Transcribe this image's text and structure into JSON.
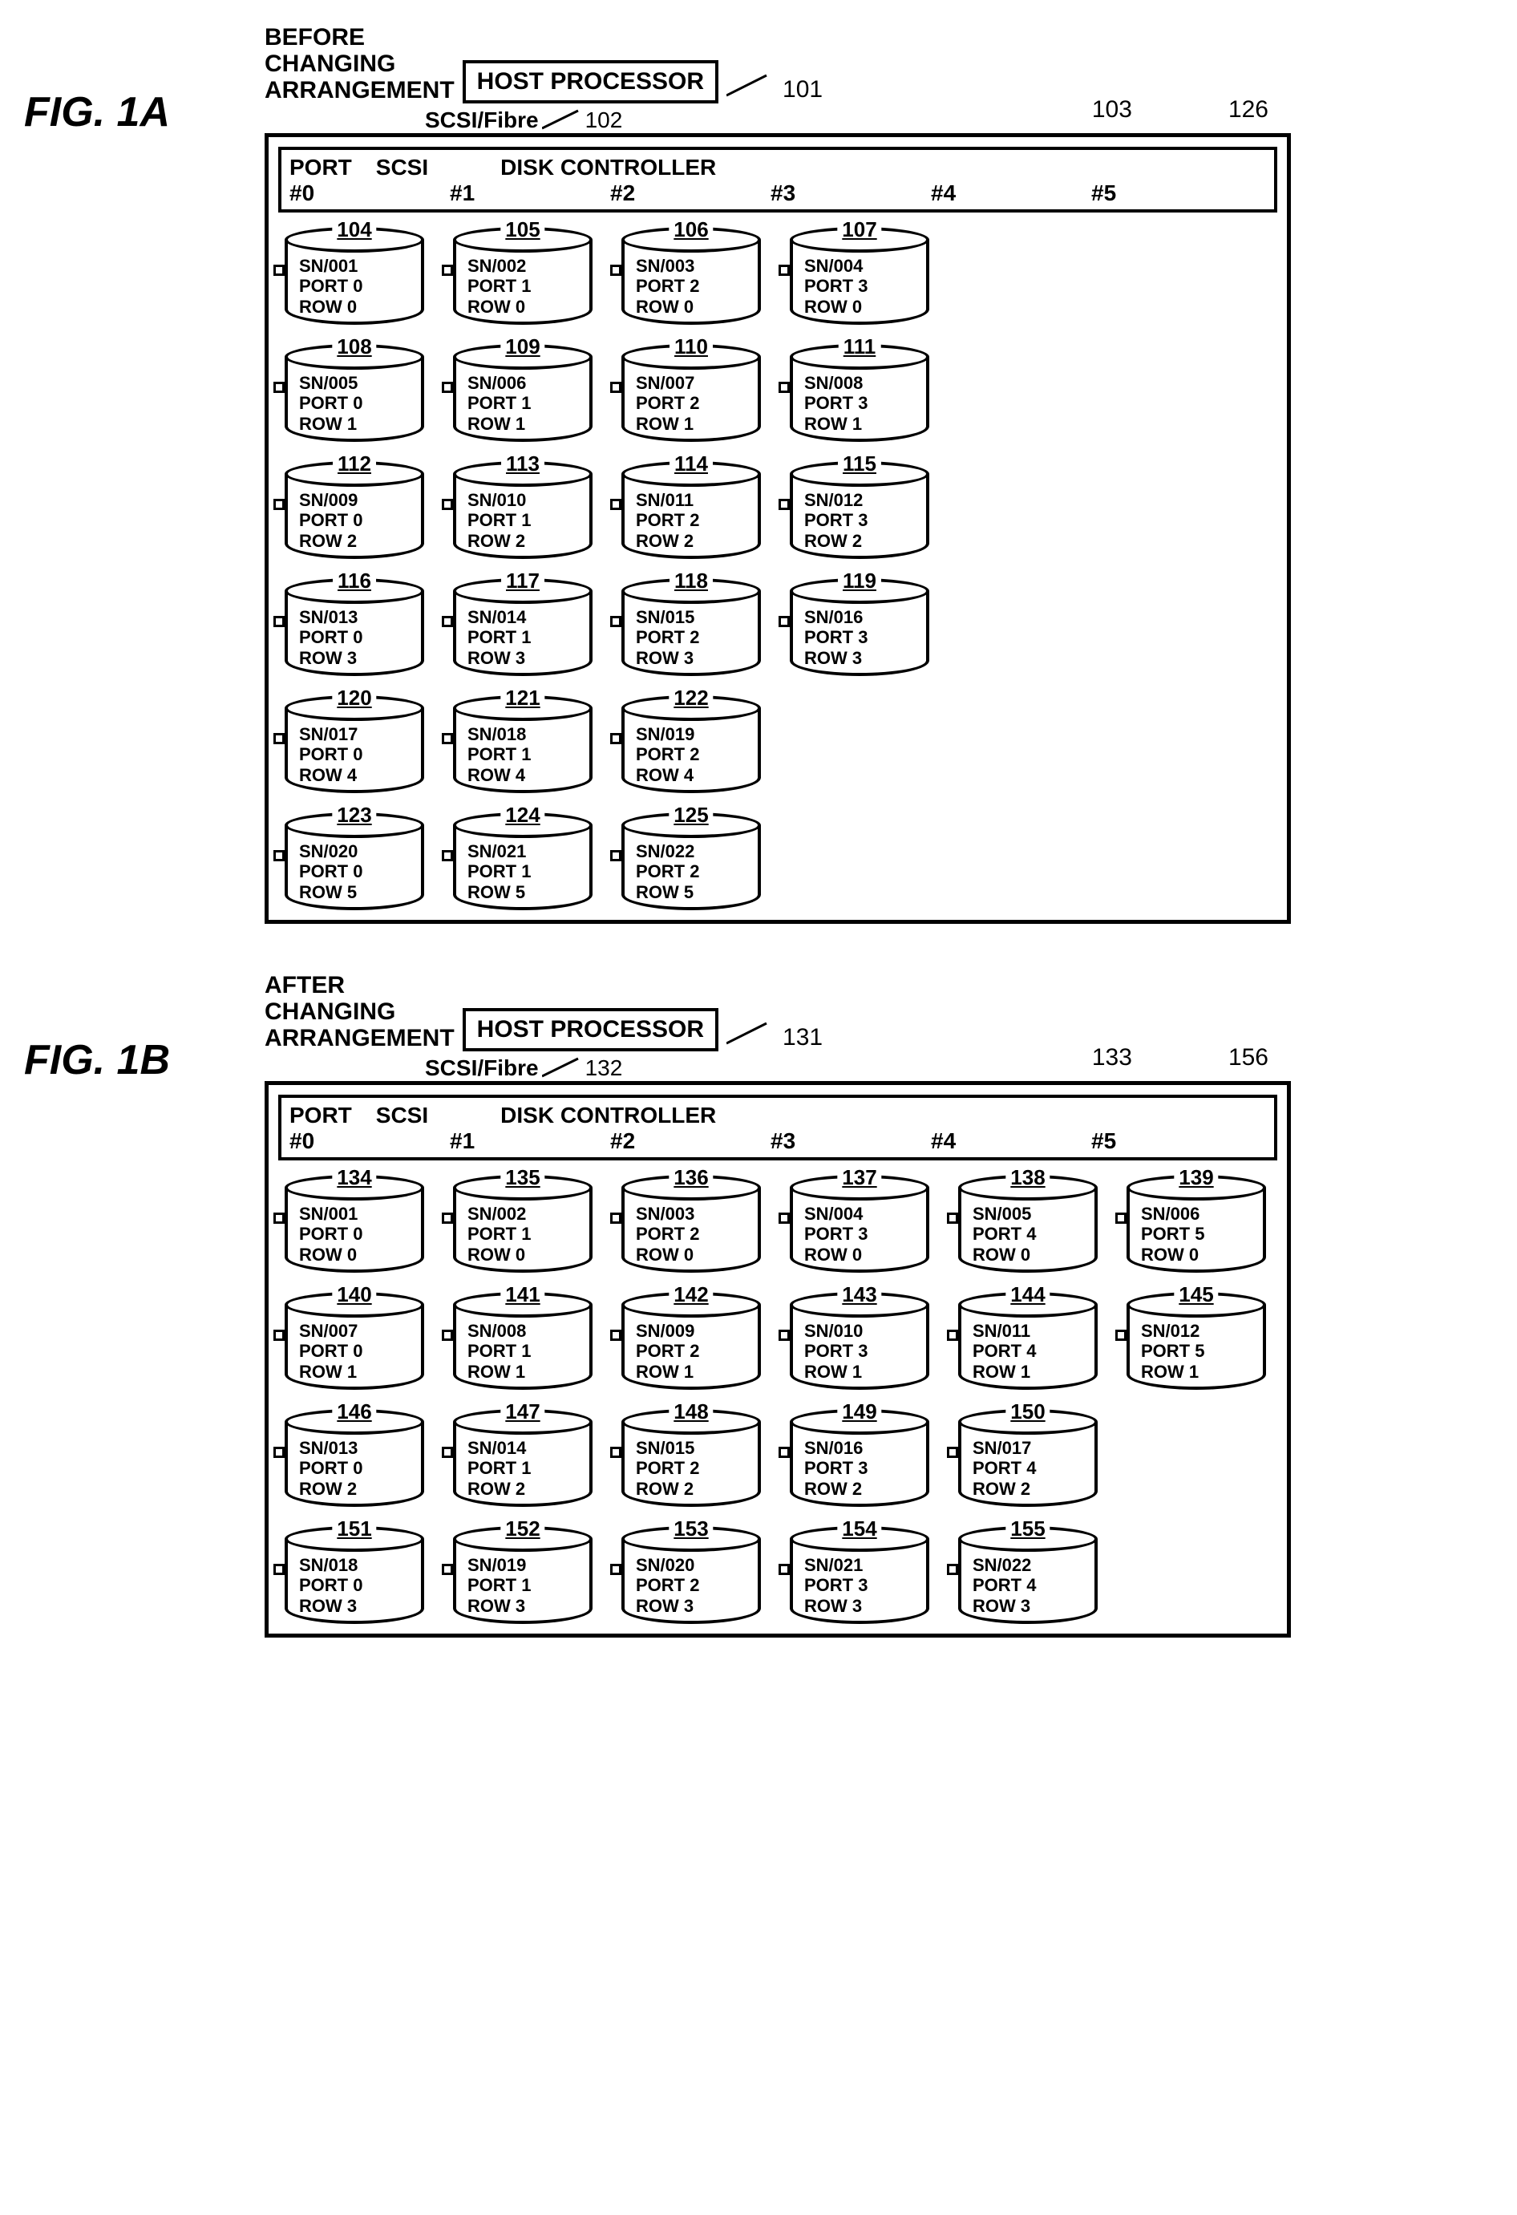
{
  "figA": {
    "label": "FIG. 1A",
    "caption": "BEFORE\nCHANGING\nARRANGEMENT",
    "host": "HOST PROCESSOR",
    "host_ref": "101",
    "scsi": "SCSI/Fibre",
    "scsi_ref": "102",
    "ctrl_ref": "103",
    "outer_ref": "126",
    "ctrl_label1": "PORT",
    "ctrl_label2": "SCSI",
    "ctrl_label3": "DISK CONTROLLER",
    "ports": [
      "#0",
      "#1",
      "#2",
      "#3",
      "#4",
      "#5"
    ],
    "disks": [
      {
        "ref": "104",
        "sn": "SN/001",
        "port": "PORT 0",
        "row": "ROW  0",
        "c": 0
      },
      {
        "ref": "105",
        "sn": "SN/002",
        "port": "PORT 1",
        "row": "ROW  0",
        "c": 1
      },
      {
        "ref": "106",
        "sn": "SN/003",
        "port": "PORT 2",
        "row": "ROW  0",
        "c": 2
      },
      {
        "ref": "107",
        "sn": "SN/004",
        "port": "PORT 3",
        "row": "ROW  0",
        "c": 3
      },
      null,
      null,
      {
        "ref": "108",
        "sn": "SN/005",
        "port": "PORT 0",
        "row": "ROW  1",
        "c": 0
      },
      {
        "ref": "109",
        "sn": "SN/006",
        "port": "PORT 1",
        "row": "ROW  1",
        "c": 1
      },
      {
        "ref": "110",
        "sn": "SN/007",
        "port": "PORT 2",
        "row": "ROW  1",
        "c": 2
      },
      {
        "ref": "111",
        "sn": "SN/008",
        "port": "PORT 3",
        "row": "ROW  1",
        "c": 3
      },
      null,
      null,
      {
        "ref": "112",
        "sn": "SN/009",
        "port": "PORT 0",
        "row": "ROW  2",
        "c": 0
      },
      {
        "ref": "113",
        "sn": "SN/010",
        "port": "PORT 1",
        "row": "ROW  2",
        "c": 1
      },
      {
        "ref": "114",
        "sn": "SN/011",
        "port": "PORT 2",
        "row": "ROW  2",
        "c": 2
      },
      {
        "ref": "115",
        "sn": "SN/012",
        "port": "PORT 3",
        "row": "ROW  2",
        "c": 3
      },
      null,
      null,
      {
        "ref": "116",
        "sn": "SN/013",
        "port": "PORT 0",
        "row": "ROW  3",
        "c": 0
      },
      {
        "ref": "117",
        "sn": "SN/014",
        "port": "PORT 1",
        "row": "ROW  3",
        "c": 1
      },
      {
        "ref": "118",
        "sn": "SN/015",
        "port": "PORT 2",
        "row": "ROW  3",
        "c": 2
      },
      {
        "ref": "119",
        "sn": "SN/016",
        "port": "PORT 3",
        "row": "ROW  3",
        "c": 3
      },
      null,
      null,
      {
        "ref": "120",
        "sn": "SN/017",
        "port": "PORT 0",
        "row": "ROW  4",
        "c": 0
      },
      {
        "ref": "121",
        "sn": "SN/018",
        "port": "PORT 1",
        "row": "ROW  4",
        "c": 1
      },
      {
        "ref": "122",
        "sn": "SN/019",
        "port": "PORT 2",
        "row": "ROW  4",
        "c": 2
      },
      null,
      null,
      null,
      {
        "ref": "123",
        "sn": "SN/020",
        "port": "PORT 0",
        "row": "ROW  5",
        "c": 0
      },
      {
        "ref": "124",
        "sn": "SN/021",
        "port": "PORT 1",
        "row": "ROW  5",
        "c": 1
      },
      {
        "ref": "125",
        "sn": "SN/022",
        "port": "PORT 2",
        "row": "ROW  5",
        "c": 2
      },
      null,
      null,
      null
    ]
  },
  "figB": {
    "label": "FIG. 1B",
    "caption": "AFTER\nCHANGING\nARRANGEMENT",
    "host": "HOST PROCESSOR",
    "host_ref": "131",
    "scsi": "SCSI/Fibre",
    "scsi_ref": "132",
    "ctrl_ref": "133",
    "outer_ref": "156",
    "ctrl_label1": "PORT",
    "ctrl_label2": "SCSI",
    "ctrl_label3": "DISK CONTROLLER",
    "ports": [
      "#0",
      "#1",
      "#2",
      "#3",
      "#4",
      "#5"
    ],
    "disks": [
      {
        "ref": "134",
        "sn": "SN/001",
        "port": "PORT 0",
        "row": "ROW  0",
        "c": 0
      },
      {
        "ref": "135",
        "sn": "SN/002",
        "port": "PORT 1",
        "row": "ROW  0",
        "c": 1
      },
      {
        "ref": "136",
        "sn": "SN/003",
        "port": "PORT 2",
        "row": "ROW  0",
        "c": 2
      },
      {
        "ref": "137",
        "sn": "SN/004",
        "port": "PORT 3",
        "row": "ROW  0",
        "c": 3
      },
      {
        "ref": "138",
        "sn": "SN/005",
        "port": "PORT 4",
        "row": "ROW  0",
        "c": 4
      },
      {
        "ref": "139",
        "sn": "SN/006",
        "port": "PORT 5",
        "row": "ROW  0",
        "c": 5
      },
      {
        "ref": "140",
        "sn": "SN/007",
        "port": "PORT 0",
        "row": "ROW  1",
        "c": 0
      },
      {
        "ref": "141",
        "sn": "SN/008",
        "port": "PORT 1",
        "row": "ROW  1",
        "c": 1
      },
      {
        "ref": "142",
        "sn": "SN/009",
        "port": "PORT 2",
        "row": "ROW  1",
        "c": 2
      },
      {
        "ref": "143",
        "sn": "SN/010",
        "port": "PORT 3",
        "row": "ROW  1",
        "c": 3
      },
      {
        "ref": "144",
        "sn": "SN/011",
        "port": "PORT 4",
        "row": "ROW  1",
        "c": 4
      },
      {
        "ref": "145",
        "sn": "SN/012",
        "port": "PORT 5",
        "row": "ROW  1",
        "c": 5
      },
      {
        "ref": "146",
        "sn": "SN/013",
        "port": "PORT 0",
        "row": "ROW  2",
        "c": 0
      },
      {
        "ref": "147",
        "sn": "SN/014",
        "port": "PORT 1",
        "row": "ROW  2",
        "c": 1
      },
      {
        "ref": "148",
        "sn": "SN/015",
        "port": "PORT 2",
        "row": "ROW  2",
        "c": 2
      },
      {
        "ref": "149",
        "sn": "SN/016",
        "port": "PORT 3",
        "row": "ROW  2",
        "c": 3
      },
      {
        "ref": "150",
        "sn": "SN/017",
        "port": "PORT 4",
        "row": "ROW  2",
        "c": 4
      },
      null,
      {
        "ref": "151",
        "sn": "SN/018",
        "port": "PORT 0",
        "row": "ROW  3",
        "c": 0
      },
      {
        "ref": "152",
        "sn": "SN/019",
        "port": "PORT 1",
        "row": "ROW  3",
        "c": 1
      },
      {
        "ref": "153",
        "sn": "SN/020",
        "port": "PORT 2",
        "row": "ROW  3",
        "c": 2
      },
      {
        "ref": "154",
        "sn": "SN/021",
        "port": "PORT 3",
        "row": "ROW  3",
        "c": 3
      },
      {
        "ref": "155",
        "sn": "SN/022",
        "port": "PORT 4",
        "row": "ROW  3",
        "c": 4
      },
      null
    ]
  },
  "colors": {
    "stroke": "#000000",
    "bg": "#ffffff"
  },
  "stroke_width": 4
}
